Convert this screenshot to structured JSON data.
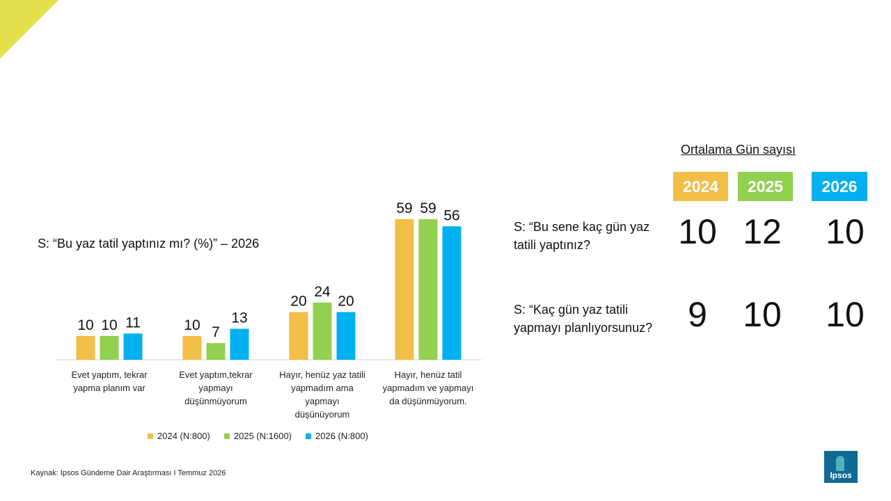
{
  "question": "S: “Bu yaz tatil yaptınız mı? (%)” – 2026",
  "chart_data": {
    "type": "bar",
    "categories": [
      [
        "Evet yaptım, tekrar",
        "yapma planım var"
      ],
      [
        "Evet yaptım,tekrar",
        "yapmayı",
        "düşünmüyorum"
      ],
      [
        "Hayır, henüz yaz tatili",
        "yapmadım ama",
        "yapmayı",
        "düşünüyorum"
      ],
      [
        "Hayır, henüz tatil",
        "yapmadım ve yapmayı",
        "da düşünmüyorum."
      ]
    ],
    "series": [
      {
        "name": "2024 (N:800)",
        "color": "#f2be47",
        "values": [
          10,
          10,
          20,
          59
        ]
      },
      {
        "name": "2025 (N:1600)",
        "color": "#92d050",
        "values": [
          10,
          7,
          24,
          59
        ]
      },
      {
        "name": "2026 (N:800)",
        "color": "#00b0f0",
        "values": [
          11,
          13,
          20,
          56
        ]
      }
    ],
    "ylim": [
      0,
      59
    ],
    "legend": "bottom",
    "grid": false
  },
  "average": {
    "title": "Ortalama Gün sayısı",
    "years": [
      {
        "label": "2024",
        "color": "#f2be47"
      },
      {
        "label": "2025",
        "color": "#92d050"
      },
      {
        "label": "2026",
        "color": "#00b0f0"
      }
    ],
    "rows": [
      {
        "question": "S: “Bu sene kaç gün yaz tatili yaptınız?",
        "values": [
          "10",
          "12",
          "10"
        ]
      },
      {
        "question": "S: “Kaç gün yaz tatili yapmayı planlıyorsunuz?",
        "values": [
          "9",
          "10",
          "10"
        ]
      }
    ]
  },
  "source": "Kaynak: Ipsos Gündeme Dair Araştırması I Temmuz 2026",
  "logo": {
    "text": "Ipsos",
    "icon": "ipsos-logo-icon"
  }
}
